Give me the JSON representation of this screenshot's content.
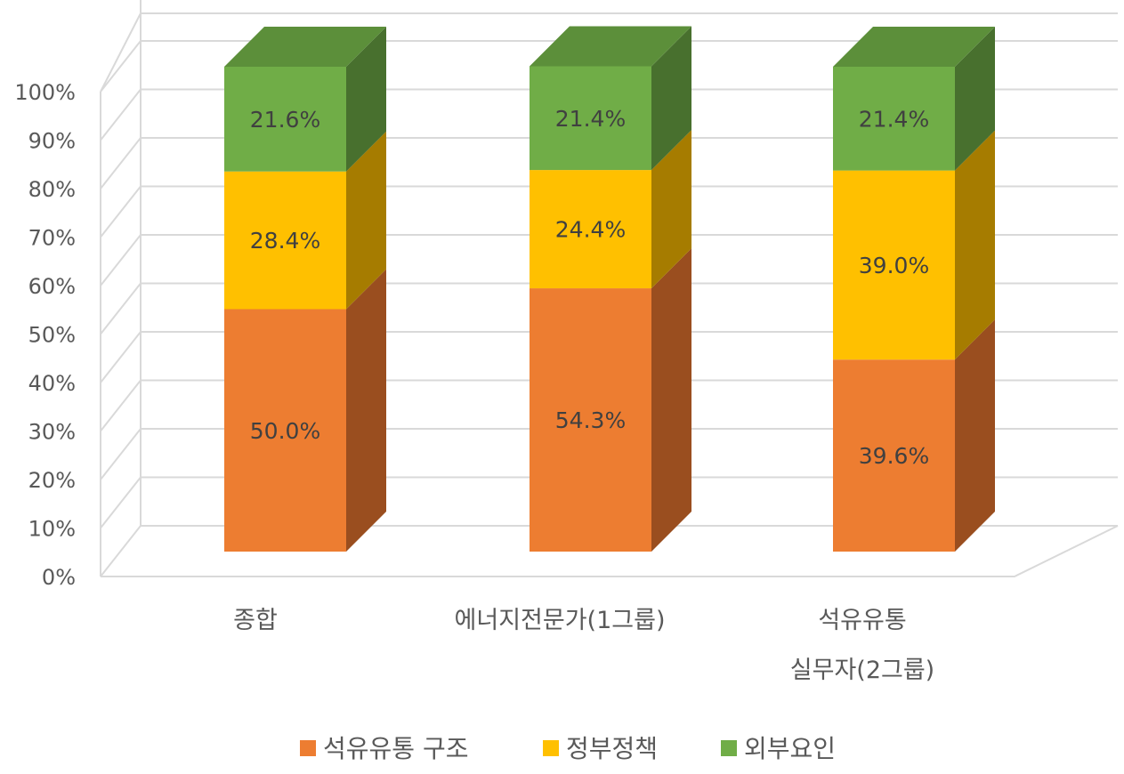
{
  "chart_data": {
    "type": "bar",
    "stacked": true,
    "percent": true,
    "three_d": true,
    "categories": [
      [
        "종합"
      ],
      [
        "에너지전문가(1그룹)"
      ],
      [
        "석유유통",
        "실무자(2그룹)"
      ]
    ],
    "series": [
      {
        "name": "석유유통 구조",
        "color": "#ED7D31",
        "side_color": "#9A4E1F",
        "values": [
          50.0,
          54.3,
          39.6
        ],
        "labels": [
          "50.0%",
          "54.3%",
          "39.6%"
        ]
      },
      {
        "name": "정부정책",
        "color": "#FFC000",
        "side_color": "#A67C00",
        "values": [
          28.4,
          24.4,
          39.0
        ],
        "labels": [
          "28.4%",
          "24.4%",
          "39.0%"
        ]
      },
      {
        "name": "외부요인",
        "color": "#70AD47",
        "side_color": "#48702E",
        "top_color": "#5C8F3A",
        "values": [
          21.6,
          21.4,
          21.4
        ],
        "labels": [
          "21.6%",
          "21.4%",
          "21.4%"
        ]
      }
    ],
    "y_ticks": [
      "0%",
      "10%",
      "20%",
      "30%",
      "40%",
      "50%",
      "60%",
      "70%",
      "80%",
      "90%",
      "100%"
    ],
    "ylim": [
      0,
      100
    ],
    "grid": true,
    "legend_position": "bottom",
    "title": "",
    "xlabel": "",
    "ylabel": ""
  }
}
